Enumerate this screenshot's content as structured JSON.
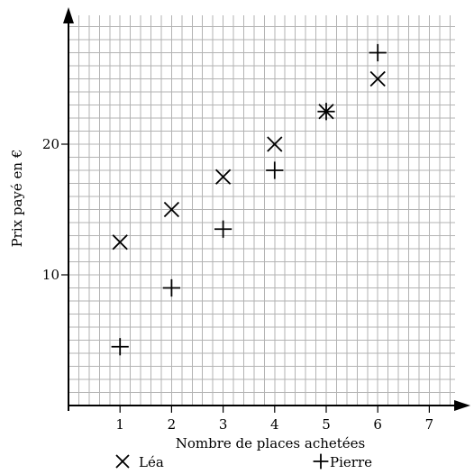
{
  "chart_data": {
    "type": "scatter",
    "title": "",
    "xlabel": "Nombre de places achetées",
    "ylabel": "Prix payé en €",
    "xlim": [
      0,
      7.5
    ],
    "ylim": [
      0,
      29
    ],
    "x_ticks": [
      1,
      2,
      3,
      4,
      5,
      6,
      7
    ],
    "y_ticks": [
      10,
      20
    ],
    "grid": true,
    "legend_position": "bottom",
    "series": [
      {
        "name": "Léa",
        "marker": "x",
        "x": [
          1,
          2,
          3,
          4,
          5,
          6
        ],
        "y": [
          12.5,
          15,
          17.5,
          20,
          22.5,
          25
        ]
      },
      {
        "name": "Pierre",
        "marker": "+",
        "x": [
          1,
          2,
          3,
          4,
          5,
          6
        ],
        "y": [
          4.5,
          9,
          13.5,
          18,
          22.5,
          27
        ]
      }
    ],
    "colors": {
      "grid": "#b3b3b3",
      "axis": "#000000",
      "marker": "#000000"
    }
  }
}
